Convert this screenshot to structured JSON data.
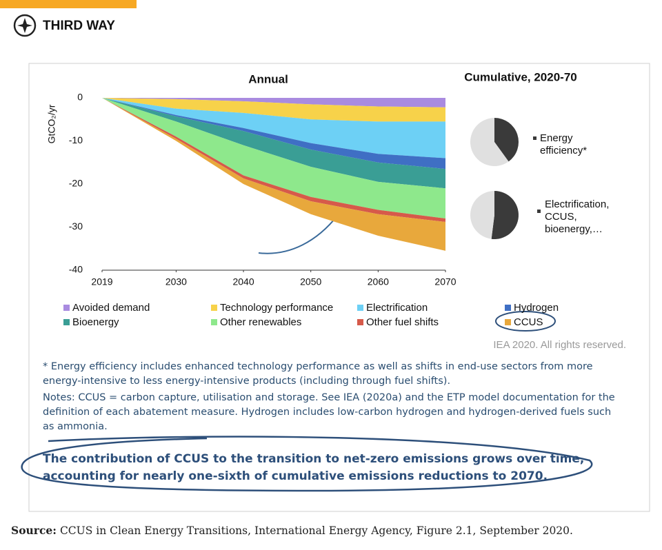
{
  "header": {
    "logo": "THIRD WAY"
  },
  "chart_data": [
    {
      "type": "area",
      "stacked": true,
      "title": "Annual",
      "y_label": "GtCO₂/yr",
      "x": [
        2019,
        2030,
        2040,
        2050,
        2060,
        2070
      ],
      "xlim": [
        2019,
        2070
      ],
      "xticks": [
        2019,
        2030,
        2040,
        2050,
        2060,
        2070
      ],
      "ylim": [
        -40,
        0
      ],
      "yticks": [
        -40,
        -30,
        -20,
        -10,
        0
      ],
      "grid": false,
      "series": [
        {
          "name": "Avoided demand",
          "color": "#a98be0",
          "values": [
            0,
            -0.3,
            -0.8,
            -1.5,
            -2,
            -2.2
          ]
        },
        {
          "name": "Technology performance",
          "color": "#f7d24a",
          "values": [
            0,
            -2.2,
            -2.7,
            -3.5,
            -3.5,
            -3.3
          ]
        },
        {
          "name": "Electrification",
          "color": "#6dd0f5",
          "values": [
            0,
            -1.5,
            -3.5,
            -5.5,
            -7.5,
            -8.5
          ]
        },
        {
          "name": "Hydrogen",
          "color": "#3f6fc4",
          "values": [
            0,
            -0.3,
            -0.7,
            -1.5,
            -2,
            -2.5
          ]
        },
        {
          "name": "Bioenergy",
          "color": "#3a9e95",
          "values": [
            0,
            -1.2,
            -3.3,
            -4,
            -4.5,
            -4.5
          ]
        },
        {
          "name": "Other renewables",
          "color": "#8ee88c",
          "values": [
            0,
            -3.5,
            -7,
            -7,
            -6.5,
            -7
          ]
        },
        {
          "name": "Other fuel shifts",
          "color": "#d65a4a",
          "values": [
            0,
            -0.5,
            -0.7,
            -1,
            -1,
            -0.8
          ]
        },
        {
          "name": "CCUS",
          "color": "#e8a83c",
          "values": [
            0,
            -0.5,
            -1.3,
            -3,
            -5,
            -6.7
          ]
        }
      ],
      "source_note": "IEA 2020. All rights reserved."
    },
    {
      "type": "pie",
      "title": "Cumulative, 2020-70",
      "categories": [
        "Energy efficiency*",
        null
      ],
      "values": [
        40,
        60
      ],
      "colors": [
        "#3a3a3a",
        "#e0e0e0"
      ]
    },
    {
      "type": "pie",
      "categories": [
        "Electrification, CCUS, bioenergy,…",
        null
      ],
      "values": [
        52,
        48
      ],
      "colors": [
        "#3a3a3a",
        "#e0e0e0"
      ]
    }
  ],
  "footnote_lines": [
    "* Energy efficiency includes enhanced technology performance as well as shifts in end-use sectors from more",
    "energy-intensive to less energy-intensive products (including through fuel shifts)."
  ],
  "notes_lines": [
    "Notes: CCUS = carbon capture, utilisation and storage. See IEA (2020a) and the ETP model documentation for the",
    "definition of each abatement measure. Hydrogen includes low-carbon hydrogen and hydrogen-derived fuels such",
    "as ammonia."
  ],
  "statement_lines": [
    "The contribution of CCUS to the transition to net-zero emissions grows over time,",
    "accounting for nearly one-sixth of cumulative emissions reductions to 2070."
  ],
  "source": {
    "label": "Source:",
    "text": "CCUS in Clean Energy Transitions, International Energy Agency, Figure 2.1, September 2020."
  }
}
